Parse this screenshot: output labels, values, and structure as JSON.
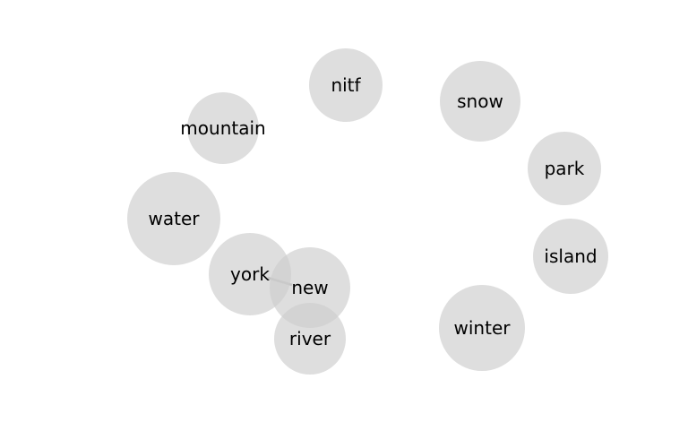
{
  "diagram": {
    "type": "term-cooccurrence-network",
    "colors": {
      "background": "#ffffff",
      "node_fill": "#cccccc",
      "edge": "#999999",
      "label": "#000000"
    },
    "nodes": [
      {
        "id": "nitf",
        "label": "nitf"
      },
      {
        "id": "snow",
        "label": "snow"
      },
      {
        "id": "mountain",
        "label": "mountain"
      },
      {
        "id": "park",
        "label": "park"
      },
      {
        "id": "water",
        "label": "water"
      },
      {
        "id": "island",
        "label": "island"
      },
      {
        "id": "york",
        "label": "york"
      },
      {
        "id": "new",
        "label": "new"
      },
      {
        "id": "winter",
        "label": "winter"
      },
      {
        "id": "river",
        "label": "river"
      }
    ],
    "edges": [
      {
        "source": "york",
        "target": "new"
      }
    ]
  }
}
